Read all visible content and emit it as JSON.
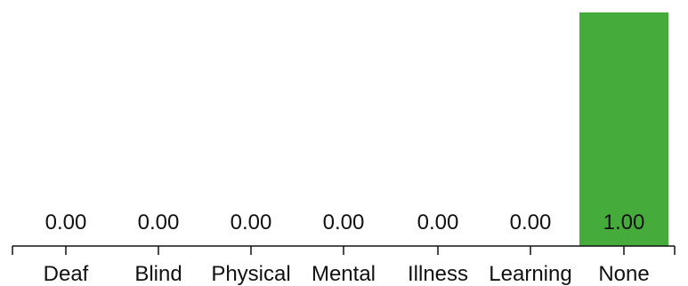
{
  "chart_data": {
    "type": "bar",
    "categories": [
      "Deaf",
      "Blind",
      "Physical",
      "Mental",
      "Illness",
      "Learning",
      "None"
    ],
    "values": [
      0.0,
      0.0,
      0.0,
      0.0,
      0.0,
      0.0,
      1.0
    ],
    "value_labels": [
      "0.00",
      "0.00",
      "0.00",
      "0.00",
      "0.00",
      "0.00",
      "1.00"
    ],
    "ylim": [
      0,
      1
    ],
    "title": "",
    "xlabel": "",
    "ylabel": "",
    "bar_color": "#45ac3c",
    "grid": false,
    "legend": "none"
  }
}
